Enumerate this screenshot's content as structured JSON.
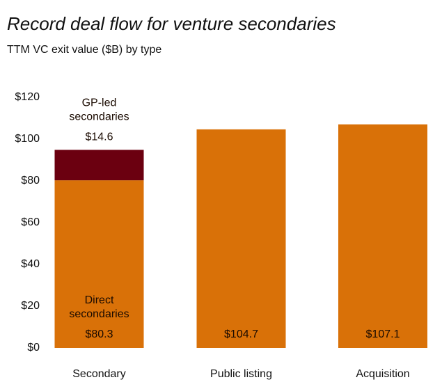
{
  "chart_data": {
    "type": "stacked_bar",
    "title": "Record deal flow for venture secondaries",
    "subtitle": "TTM VC exit value ($B) by type",
    "categories": [
      "Secondary",
      "Public listing",
      "Acquisition"
    ],
    "series": [
      {
        "name": "Direct secondaries",
        "color": "#d97108",
        "values": [
          80.3,
          104.7,
          107.1
        ],
        "value_labels": [
          "$80.3",
          "$104.7",
          "$107.1"
        ]
      },
      {
        "name": "GP-led secondaries",
        "color": "#6b0010",
        "values": [
          14.6,
          null,
          null
        ],
        "value_labels": [
          "$14.6",
          null,
          null
        ]
      }
    ],
    "ylim": [
      0,
      120
    ],
    "yticks": [
      {
        "value": 0,
        "label": "$0"
      },
      {
        "value": 20,
        "label": "$20"
      },
      {
        "value": 40,
        "label": "$40"
      },
      {
        "value": 60,
        "label": "$60"
      },
      {
        "value": 80,
        "label": "$80"
      },
      {
        "value": 100,
        "label": "$100"
      },
      {
        "value": 120,
        "label": "$120"
      }
    ],
    "grid": false
  }
}
